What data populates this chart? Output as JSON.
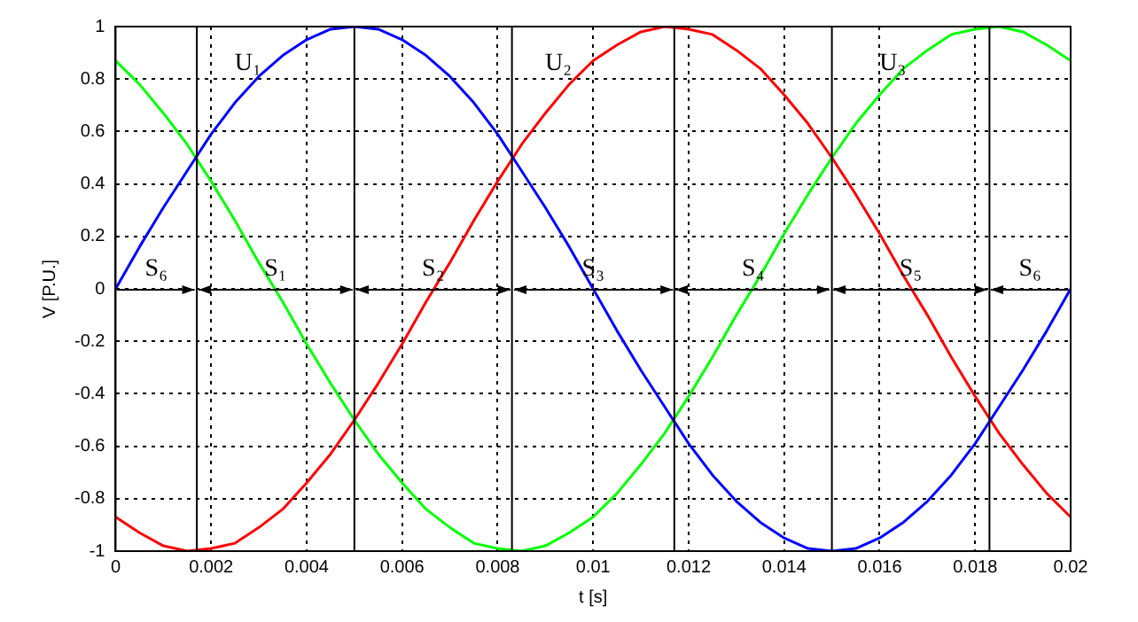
{
  "chart_data": {
    "type": "line",
    "xlabel": "t [s]",
    "ylabel": "V [P.U.]",
    "x": [
      0,
      0.0005,
      0.001,
      0.0015,
      0.002,
      0.0025,
      0.003,
      0.0035,
      0.004,
      0.0045,
      0.005,
      0.0055,
      0.006,
      0.0065,
      0.007,
      0.0075,
      0.008,
      0.0085,
      0.009,
      0.0095,
      0.01,
      0.0105,
      0.011,
      0.0115,
      0.012,
      0.0125,
      0.013,
      0.0135,
      0.014,
      0.0145,
      0.015,
      0.0155,
      0.016,
      0.0165,
      0.017,
      0.0175,
      0.018,
      0.0185,
      0.019,
      0.0195,
      0.02
    ],
    "series": [
      {
        "name": "U₁",
        "color": "#0000ff",
        "values": [
          0,
          0.16,
          0.31,
          0.45,
          0.59,
          0.71,
          0.81,
          0.89,
          0.95,
          0.99,
          1,
          0.99,
          0.95,
          0.89,
          0.81,
          0.71,
          0.59,
          0.45,
          0.31,
          0.16,
          0,
          -0.16,
          -0.31,
          -0.45,
          -0.59,
          -0.71,
          -0.81,
          -0.89,
          -0.95,
          -0.99,
          -1,
          -0.99,
          -0.95,
          -0.89,
          -0.81,
          -0.71,
          -0.59,
          -0.45,
          -0.31,
          -0.16,
          0
        ]
      },
      {
        "name": "U₂",
        "color": "#ff0000",
        "values": [
          -0.87,
          -0.93,
          -0.98,
          -1,
          -0.99,
          -0.97,
          -0.91,
          -0.84,
          -0.74,
          -0.63,
          -0.5,
          -0.36,
          -0.21,
          -0.05,
          0.1,
          0.26,
          0.41,
          0.55,
          0.67,
          0.78,
          0.87,
          0.93,
          0.98,
          1,
          0.99,
          0.97,
          0.91,
          0.84,
          0.74,
          0.63,
          0.5,
          0.36,
          0.21,
          0.05,
          -0.1,
          -0.26,
          -0.41,
          -0.55,
          -0.67,
          -0.78,
          -0.87
        ]
      },
      {
        "name": "U₃",
        "color": "#00ff00",
        "values": [
          0.87,
          0.78,
          0.67,
          0.55,
          0.41,
          0.26,
          0.1,
          -0.05,
          -0.21,
          -0.36,
          -0.5,
          -0.63,
          -0.74,
          -0.84,
          -0.91,
          -0.97,
          -0.99,
          -1,
          -0.98,
          -0.93,
          -0.87,
          -0.78,
          -0.67,
          -0.55,
          -0.41,
          -0.26,
          -0.1,
          0.05,
          0.21,
          0.36,
          0.5,
          0.63,
          0.74,
          0.84,
          0.91,
          0.97,
          0.99,
          1,
          0.98,
          0.93,
          0.87
        ]
      }
    ],
    "xlim": [
      0,
      0.02
    ],
    "xticks": [
      0,
      0.002,
      0.004,
      0.006,
      0.008,
      0.01,
      0.012,
      0.014,
      0.016,
      0.018,
      0.02
    ],
    "ylim": [
      -1,
      1
    ],
    "yticks": [
      -1,
      -0.8,
      -0.6,
      -0.4,
      -0.2,
      0,
      0.2,
      0.4,
      0.6,
      0.8,
      1
    ],
    "grid": true,
    "legend": false,
    "marker": "none",
    "line_style": "solid",
    "ref_lines": [
      {
        "axis": "x",
        "value": 0.0017,
        "color": "#000000"
      },
      {
        "axis": "x",
        "value": 0.005,
        "color": "#000000"
      },
      {
        "axis": "x",
        "value": 0.0083,
        "color": "#000000"
      },
      {
        "axis": "x",
        "value": 0.0117,
        "color": "#000000"
      },
      {
        "axis": "x",
        "value": 0.015,
        "color": "#000000"
      },
      {
        "axis": "x",
        "value": 0.0183,
        "color": "#000000"
      }
    ],
    "annotations": [
      "S₆",
      "S₁",
      "S₂",
      "S₃",
      "S₄",
      "S₅",
      "S₆"
    ]
  }
}
